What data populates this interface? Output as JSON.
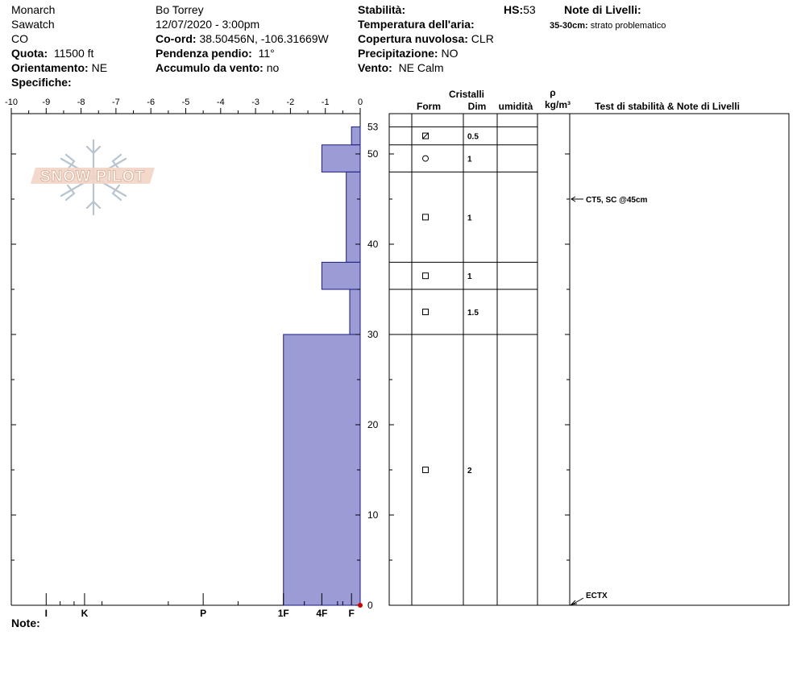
{
  "header": {
    "location": "Monarch",
    "range": "Sawatch",
    "state": "CO",
    "observer": "Bo Torrey",
    "datetime": "12/07/2020 - 3:00pm",
    "quota_label": "Quota:",
    "quota_value": "11500 ft",
    "orient_label": "Orientamento:",
    "orient_value": "NE",
    "specifiche_label": "Specifiche:",
    "coord_label": "Co-ord:",
    "coord_value": "38.50456N, -106.31669W",
    "pendenza_label": "Pendenza pendio:",
    "pendenza_value": "11°",
    "accumulo_label": "Accumulo da vento:",
    "accumulo_value": "no",
    "stabilita_label": "Stabilità:",
    "temp_label": "Temperatura dell'aria:",
    "copertura_label": "Copertura nuvolosa:",
    "copertura_value": "CLR",
    "precip_label": "Precipitazione:",
    "precip_value": "NO",
    "vento_label": "Vento:",
    "vento_value": "NE Calm",
    "hs_label": "HS:",
    "hs_value": "53",
    "note_livelli_label": "Note di Livelli:",
    "note_livelli_range": "35-30cm:",
    "note_livelli_text": "strato problematico"
  },
  "logo_text": "SNOW PILOT",
  "note_label": "Note:",
  "columns": {
    "cristalli": "Cristalli",
    "form": "Form",
    "dim": "Dim",
    "umidita": "umidità",
    "rho": "ρ",
    "density_unit": "kg/m³",
    "stability": "Test di stabilità & Note di Livelli"
  },
  "colors": {
    "bar_fill": "#9b9bd6",
    "bar_stroke": "#1a1a80",
    "marker": "#cc0000"
  },
  "chart_data": {
    "type": "bar",
    "orientation": "horizontal",
    "x_ticks": [
      -10,
      -9,
      -8,
      -7,
      -6,
      -5,
      -4,
      -3,
      -2,
      -1,
      0
    ],
    "x_tick_labels": [
      "-10",
      "-9",
      "-8",
      "-7",
      "-6",
      "-5",
      "-4",
      "-3",
      "-2",
      "-1",
      "0"
    ],
    "xlim": [
      -10,
      0
    ],
    "ylim": [
      0,
      53
    ],
    "y_ticks": [
      0,
      10,
      20,
      30,
      40,
      50,
      53
    ],
    "y_tick_labels": [
      "0",
      "10",
      "20",
      "30",
      "40",
      "50",
      "53"
    ],
    "hardness_scale": [
      {
        "label": "I",
        "value": -9
      },
      {
        "label": "K",
        "value": -7.9
      },
      {
        "label": "P",
        "value": -4.5
      },
      {
        "label": "1F",
        "value": -2.2
      },
      {
        "label": "4F",
        "value": -1.1
      },
      {
        "label": "F",
        "value": -0.25
      }
    ],
    "layers": [
      {
        "top": 53,
        "bottom": 51,
        "hardness": -0.25,
        "form": "faceted-rounded",
        "dim": "0.5"
      },
      {
        "top": 51,
        "bottom": 48,
        "hardness": -1.1,
        "form": "round",
        "dim": "1"
      },
      {
        "top": 48,
        "bottom": 38,
        "hardness": -0.4,
        "form": "square",
        "dim": "1"
      },
      {
        "top": 38,
        "bottom": 35,
        "hardness": -1.1,
        "form": "square",
        "dim": "1"
      },
      {
        "top": 35,
        "bottom": 30,
        "hardness": -0.3,
        "form": "square",
        "dim": "1.5"
      },
      {
        "top": 30,
        "bottom": 0,
        "hardness": -2.2,
        "form": "square",
        "dim": "2"
      }
    ],
    "stability_tests": [
      {
        "depth": 45,
        "label": "CT5, SC @45cm"
      },
      {
        "depth": 0,
        "label": "ECTX"
      }
    ]
  }
}
